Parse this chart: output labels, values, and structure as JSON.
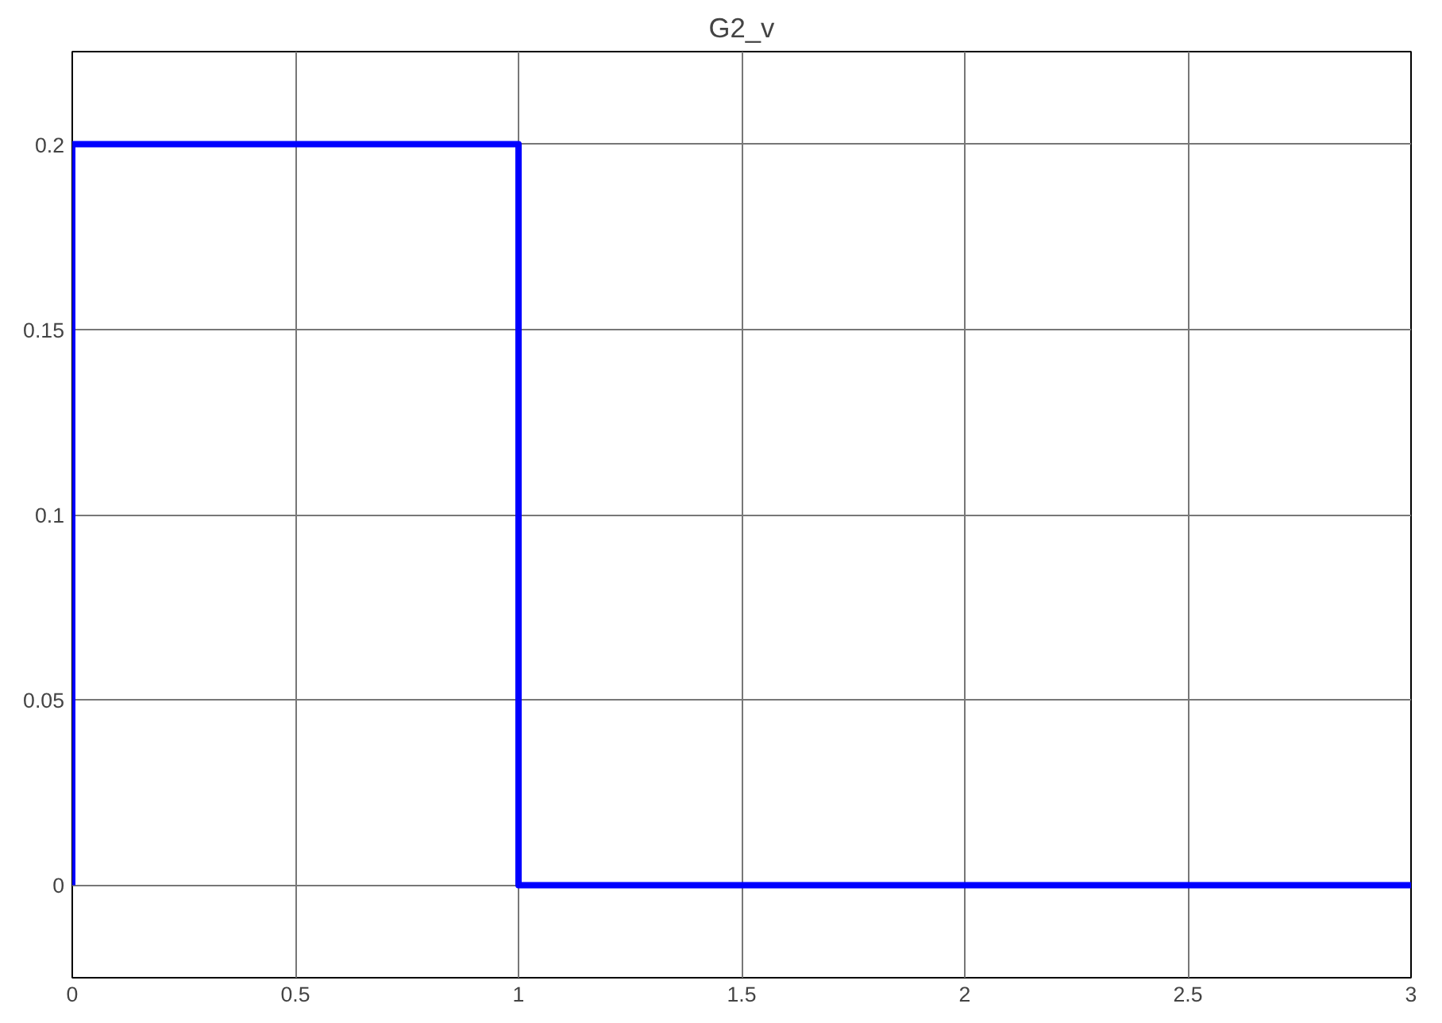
{
  "chart_data": {
    "type": "line",
    "title": "G2_v",
    "x": [
      0,
      0,
      1,
      1,
      3
    ],
    "series": [
      {
        "color": "#0000ff",
        "values": [
          0,
          0.2,
          0.2,
          0,
          0
        ]
      }
    ],
    "xlim": [
      0,
      3
    ],
    "xticks": [
      0,
      0.5,
      1,
      1.5,
      2,
      2.5,
      3
    ],
    "ylim": [
      -0.025,
      0.225
    ],
    "yticks": [
      0,
      0.05,
      0.1,
      0.15,
      0.2
    ],
    "grid": true,
    "marker": "none",
    "line_style": "solid"
  }
}
